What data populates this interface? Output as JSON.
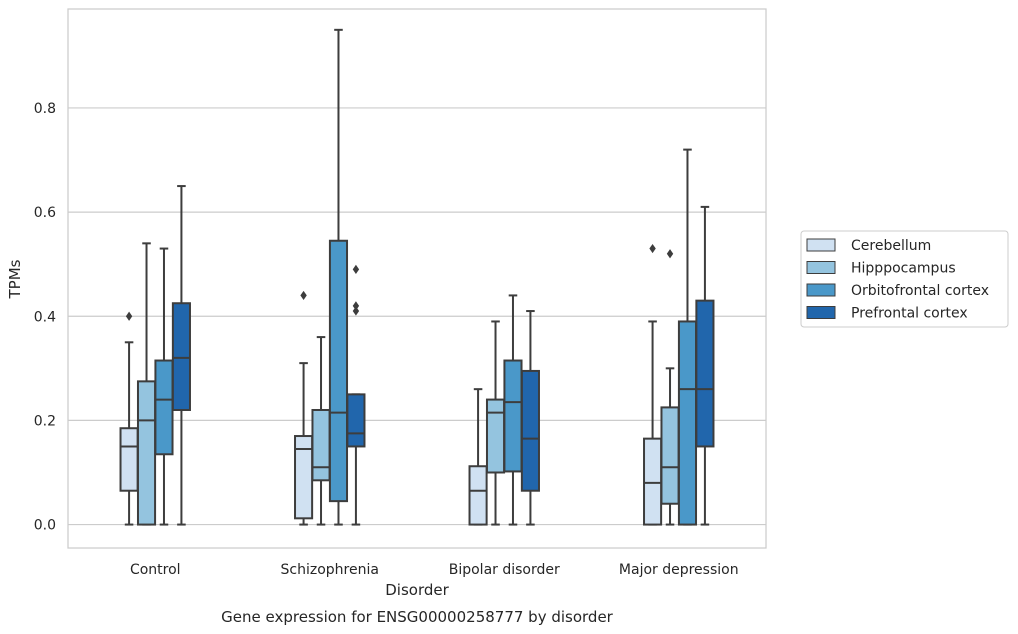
{
  "chart_data": {
    "type": "box",
    "caption": "Gene expression for ENSG00000258777 by disorder",
    "xlabel": "Disorder",
    "ylabel": "TPMs",
    "ylim": [
      -0.045,
      0.99
    ],
    "yticks": [
      0.0,
      0.2,
      0.4,
      0.6,
      0.8
    ],
    "ytick_labels": [
      "0.0",
      "0.2",
      "0.4",
      "0.6",
      "0.8"
    ],
    "grid": "horizontal",
    "legend_position": "right",
    "categories": [
      "Control",
      "Schizophrenia",
      "Bipolar disorder",
      "Major depression"
    ],
    "series": [
      {
        "name": "Cerebellum",
        "color": "#d0e1f2",
        "boxes": [
          {
            "whisker_low": 0.0,
            "q1": 0.065,
            "median": 0.15,
            "q3": 0.185,
            "whisker_high": 0.35,
            "outliers": [
              0.4
            ]
          },
          {
            "whisker_low": 0.0,
            "q1": 0.012,
            "median": 0.145,
            "q3": 0.17,
            "whisker_high": 0.31,
            "outliers": [
              0.44
            ]
          },
          {
            "whisker_low": 0.0,
            "q1": 0.0,
            "median": 0.065,
            "q3": 0.112,
            "whisker_high": 0.26,
            "outliers": []
          },
          {
            "whisker_low": 0.0,
            "q1": 0.0,
            "median": 0.08,
            "q3": 0.165,
            "whisker_high": 0.39,
            "outliers": [
              0.53
            ]
          }
        ]
      },
      {
        "name": "Hipppocampus",
        "color": "#94c4df",
        "boxes": [
          {
            "whisker_low": 0.0,
            "q1": 0.0,
            "median": 0.2,
            "q3": 0.275,
            "whisker_high": 0.54,
            "outliers": []
          },
          {
            "whisker_low": 0.0,
            "q1": 0.085,
            "median": 0.11,
            "q3": 0.22,
            "whisker_high": 0.36,
            "outliers": []
          },
          {
            "whisker_low": 0.0,
            "q1": 0.1,
            "median": 0.215,
            "q3": 0.24,
            "whisker_high": 0.39,
            "outliers": []
          },
          {
            "whisker_low": 0.0,
            "q1": 0.04,
            "median": 0.11,
            "q3": 0.225,
            "whisker_high": 0.3,
            "outliers": [
              0.52
            ]
          }
        ]
      },
      {
        "name": "Orbitofrontal cortex",
        "color": "#4a98c9",
        "boxes": [
          {
            "whisker_low": 0.0,
            "q1": 0.135,
            "median": 0.24,
            "q3": 0.315,
            "whisker_high": 0.53,
            "outliers": []
          },
          {
            "whisker_low": 0.0,
            "q1": 0.045,
            "median": 0.215,
            "q3": 0.545,
            "whisker_high": 0.95,
            "outliers": []
          },
          {
            "whisker_low": 0.0,
            "q1": 0.102,
            "median": 0.235,
            "q3": 0.315,
            "whisker_high": 0.44,
            "outliers": []
          },
          {
            "whisker_low": 0.0,
            "q1": 0.0,
            "median": 0.26,
            "q3": 0.39,
            "whisker_high": 0.72,
            "outliers": []
          }
        ]
      },
      {
        "name": "Prefrontal cortex",
        "color": "#2166ac",
        "boxes": [
          {
            "whisker_low": 0.0,
            "q1": 0.22,
            "median": 0.32,
            "q3": 0.425,
            "whisker_high": 0.65,
            "outliers": []
          },
          {
            "whisker_low": 0.0,
            "q1": 0.15,
            "median": 0.175,
            "q3": 0.25,
            "whisker_high": 0.25,
            "outliers": [
              0.41,
              0.42,
              0.49
            ]
          },
          {
            "whisker_low": 0.0,
            "q1": 0.065,
            "median": 0.165,
            "q3": 0.295,
            "whisker_high": 0.41,
            "outliers": []
          },
          {
            "whisker_low": 0.0,
            "q1": 0.15,
            "median": 0.26,
            "q3": 0.43,
            "whisker_high": 0.61,
            "outliers": []
          }
        ]
      }
    ]
  }
}
